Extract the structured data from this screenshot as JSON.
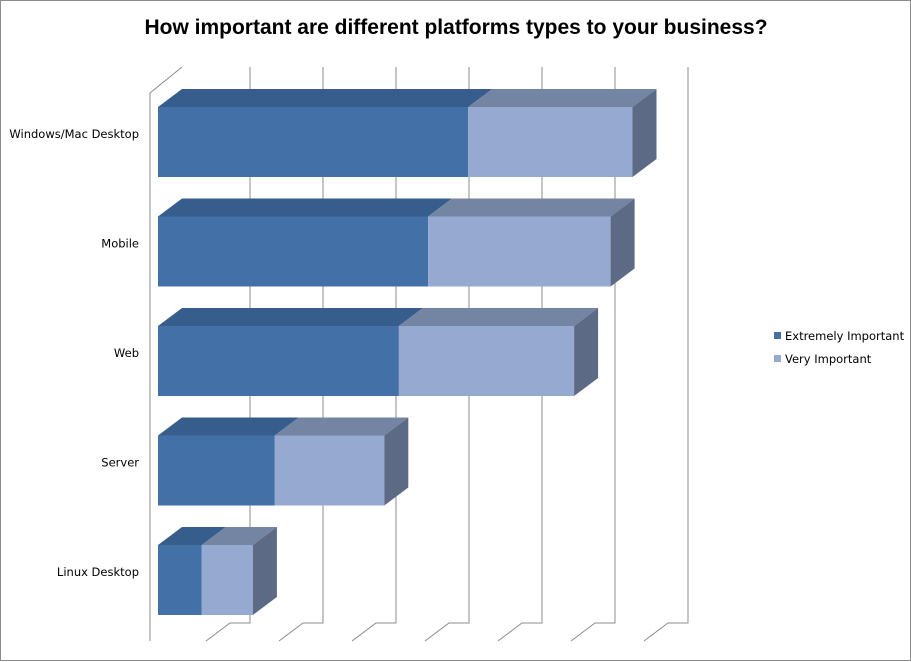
{
  "chart_data": {
    "type": "bar",
    "orientation": "horizontal",
    "stacked": true,
    "three_d": true,
    "title": "How important are different platforms types to your business?",
    "categories": [
      "Windows/Mac Desktop",
      "Mobile",
      "Web",
      "Server",
      "Linux Desktop"
    ],
    "series": [
      {
        "name": "Extremely Important",
        "values": [
          85,
          74,
          66,
          32,
          12
        ],
        "color": "#4470a8",
        "top_color": "#375d8c",
        "side_color": "#30527c"
      },
      {
        "name": "Very Important",
        "values": [
          45,
          50,
          48,
          30,
          14
        ],
        "color": "#95a9d1",
        "top_color": "#7484a3",
        "side_color": "#5d6a85"
      }
    ],
    "xlim": [
      0,
      140
    ],
    "grid": true,
    "legend_position": "right"
  }
}
